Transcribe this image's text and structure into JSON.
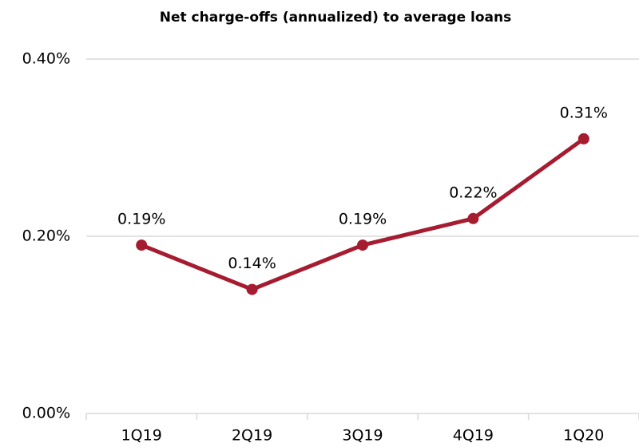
{
  "chart_data": {
    "type": "line",
    "title": "Net charge-offs (annualized) to average loans",
    "categories": [
      "1Q19",
      "2Q19",
      "3Q19",
      "4Q19",
      "1Q20"
    ],
    "values": [
      0.19,
      0.14,
      0.19,
      0.22,
      0.31
    ],
    "value_labels": [
      "0.19%",
      "0.14%",
      "0.19%",
      "0.22%",
      "0.31%"
    ],
    "color": "#a51c30",
    "ylim": [
      0,
      0.4
    ],
    "yticks": [
      {
        "value": 0,
        "label": "0.00%"
      },
      {
        "value": 0.2,
        "label": "0.20%"
      },
      {
        "value": 0.4,
        "label": "0.40%"
      }
    ],
    "grid": true
  }
}
